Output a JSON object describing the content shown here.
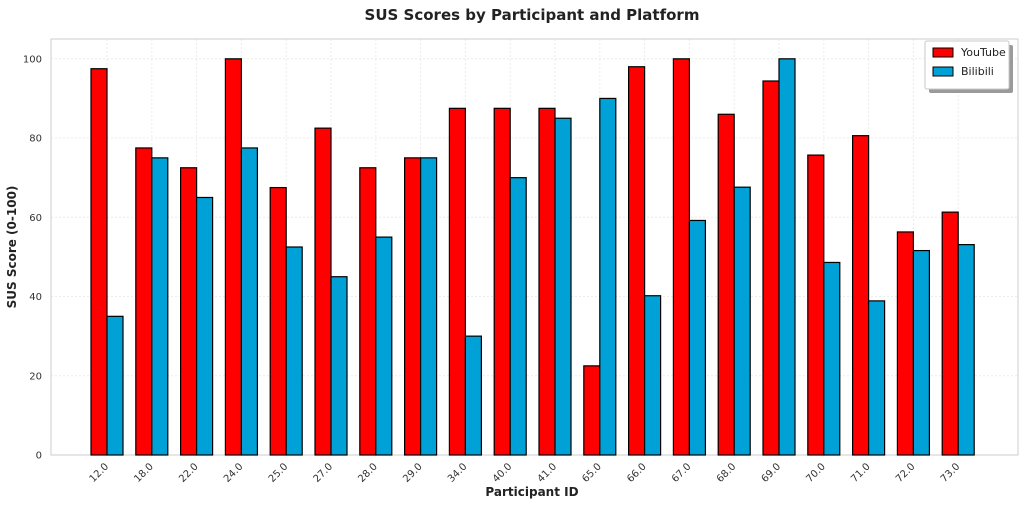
{
  "chart_data": {
    "type": "bar",
    "title": "SUS Scores by Participant and Platform",
    "xlabel": "Participant ID",
    "ylabel": "SUS Score (0-100)",
    "ylim": [
      0,
      105
    ],
    "yticks": [
      0,
      20,
      40,
      60,
      80,
      100
    ],
    "grid": true,
    "legend_position": "top-right",
    "categories": [
      "12.0",
      "18.0",
      "22.0",
      "24.0",
      "25.0",
      "27.0",
      "28.0",
      "29.0",
      "34.0",
      "40.0",
      "41.0",
      "65.0",
      "66.0",
      "67.0",
      "68.0",
      "69.0",
      "70.0",
      "71.0",
      "72.0",
      "73.0"
    ],
    "series": [
      {
        "name": "YouTube",
        "color": "#ff0000",
        "values": [
          97.5,
          77.5,
          72.5,
          100,
          67.5,
          82.5,
          72.5,
          75,
          87.5,
          87.5,
          87.5,
          22.5,
          98,
          100,
          86,
          94.4,
          75.7,
          80.6,
          56.3,
          61.3
        ]
      },
      {
        "name": "Bilibili",
        "color": "#00a1d6",
        "values": [
          35,
          75,
          65,
          77.5,
          52.5,
          45,
          55,
          75,
          30,
          70,
          85,
          90,
          40.2,
          59.2,
          67.6,
          100,
          48.6,
          38.9,
          51.6,
          53.1
        ]
      }
    ]
  }
}
